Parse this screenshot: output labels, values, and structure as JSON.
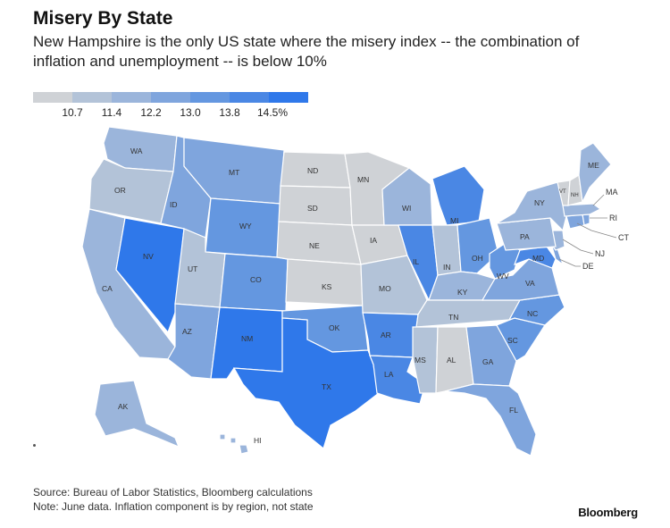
{
  "title": "Misery By State",
  "subtitle": "New Hampshire is the only US state where the misery index -- the combination of inflation and unemployment -- is below 10%",
  "legend": {
    "colors": [
      "#cfd2d6",
      "#b3c3d8",
      "#9bb5db",
      "#7fa5dd",
      "#6497e0",
      "#4a87e4",
      "#2f78ea"
    ],
    "labels": [
      "10.7",
      "11.4",
      "12.2",
      "13.0",
      "13.8",
      "14.5%"
    ]
  },
  "source": "Source: Bureau of Labor Statistics, Bloomberg calculations",
  "note": "Note: June data. Inflation component is by region, not state",
  "brand": "Bloomberg",
  "states": {
    "WA": {
      "label": "WA",
      "level": 2
    },
    "OR": {
      "label": "OR",
      "level": 1
    },
    "CA": {
      "label": "CA",
      "level": 2
    },
    "NV": {
      "label": "NV",
      "level": 6
    },
    "ID": {
      "label": "ID",
      "level": 3
    },
    "MT": {
      "label": "MT",
      "level": 3
    },
    "WY": {
      "label": "WY",
      "level": 4
    },
    "UT": {
      "label": "UT",
      "level": 1
    },
    "CO": {
      "label": "CO",
      "level": 4
    },
    "AZ": {
      "label": "AZ",
      "level": 3
    },
    "NM": {
      "label": "NM",
      "level": 6
    },
    "TX": {
      "label": "TX",
      "level": 6
    },
    "ND": {
      "label": "ND",
      "level": 0
    },
    "SD": {
      "label": "SD",
      "level": 0
    },
    "NE": {
      "label": "NE",
      "level": 0
    },
    "KS": {
      "label": "KS",
      "level": 0
    },
    "OK": {
      "label": "OK",
      "level": 4
    },
    "MN": {
      "label": "MN",
      "level": 0
    },
    "IA": {
      "label": "IA",
      "level": 0
    },
    "MO": {
      "label": "MO",
      "level": 1
    },
    "AR": {
      "label": "AR",
      "level": 5
    },
    "LA": {
      "label": "LA",
      "level": 5
    },
    "WI": {
      "label": "WI",
      "level": 2
    },
    "IL": {
      "label": "IL",
      "level": 5
    },
    "MI": {
      "label": "MI",
      "level": 5
    },
    "IN": {
      "label": "IN",
      "level": 1
    },
    "OH": {
      "label": "OH",
      "level": 4
    },
    "KY": {
      "label": "KY",
      "level": 2
    },
    "TN": {
      "label": "TN",
      "level": 1
    },
    "MS": {
      "label": "MS",
      "level": 1
    },
    "AL": {
      "label": "AL",
      "level": 0
    },
    "GA": {
      "label": "GA",
      "level": 3
    },
    "FL": {
      "label": "FL",
      "level": 3
    },
    "SC": {
      "label": "SC",
      "level": 4
    },
    "NC": {
      "label": "NC",
      "level": 4
    },
    "VA": {
      "label": "VA",
      "level": 3
    },
    "WV": {
      "label": "WV",
      "level": 4
    },
    "MD": {
      "label": "MD",
      "level": 5
    },
    "DE": {
      "label": "DE",
      "level": 3
    },
    "NJ": {
      "label": "NJ",
      "level": 2
    },
    "PA": {
      "label": "PA",
      "level": 2
    },
    "NY": {
      "label": "NY",
      "level": 2
    },
    "CT": {
      "label": "CT",
      "level": 3
    },
    "RI": {
      "label": "RI",
      "level": 3
    },
    "MA": {
      "label": "MA",
      "level": 2
    },
    "VT": {
      "label": "VT",
      "level": 0
    },
    "NH": {
      "label": "NH",
      "level": 0
    },
    "ME": {
      "label": "ME",
      "level": 2
    },
    "AK": {
      "label": "AK",
      "level": 2
    },
    "HI": {
      "label": "HI",
      "level": 2
    }
  }
}
